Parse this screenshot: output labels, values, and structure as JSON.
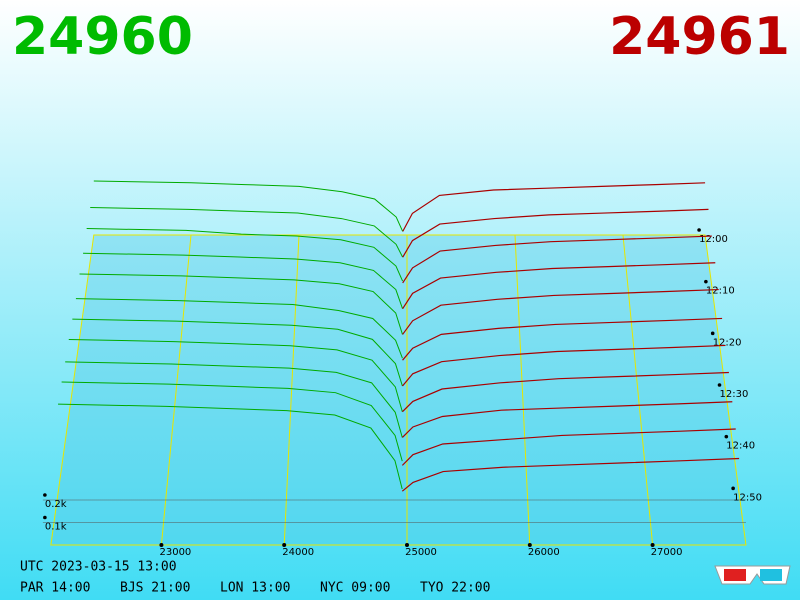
{
  "chart_data": {
    "type": "depth3d",
    "bid_price": "24960",
    "ask_price": "24961",
    "bid_color": "#00aa00",
    "ask_color": "#aa0000",
    "grid_color": "#e6e600",
    "bid_prices": [
      24960,
      24900,
      24700,
      24400,
      24000,
      23500,
      23000,
      22100
    ],
    "ask_prices": [
      24961,
      25050,
      25300,
      25800,
      26300,
      26800,
      27300,
      27760
    ],
    "series": [
      {
        "time": 0,
        "bids": [
          0.02,
          0.1,
          0.2,
          0.24,
          0.27,
          0.28,
          0.29,
          0.3
        ],
        "asks": [
          0.02,
          0.12,
          0.22,
          0.25,
          0.26,
          0.27,
          0.28,
          0.29
        ]
      },
      {
        "time": 5,
        "bids": [
          0.02,
          0.09,
          0.19,
          0.23,
          0.26,
          0.27,
          0.28,
          0.29
        ],
        "asks": [
          0.02,
          0.11,
          0.2,
          0.23,
          0.25,
          0.26,
          0.27,
          0.28
        ]
      },
      {
        "time": 10,
        "bids": [
          0.03,
          0.11,
          0.21,
          0.25,
          0.27,
          0.28,
          0.3,
          0.31
        ],
        "asks": [
          0.02,
          0.1,
          0.19,
          0.22,
          0.24,
          0.25,
          0.26,
          0.27
        ]
      },
      {
        "time": 15,
        "bids": [
          0.02,
          0.12,
          0.22,
          0.26,
          0.28,
          0.29,
          0.3,
          0.31
        ],
        "asks": [
          0.02,
          0.1,
          0.18,
          0.21,
          0.23,
          0.24,
          0.25,
          0.26
        ]
      },
      {
        "time": 20,
        "bids": [
          0.02,
          0.13,
          0.24,
          0.28,
          0.3,
          0.31,
          0.32,
          0.33
        ],
        "asks": [
          0.02,
          0.09,
          0.17,
          0.2,
          0.22,
          0.23,
          0.24,
          0.25
        ]
      },
      {
        "time": 25,
        "bids": [
          0.03,
          0.12,
          0.23,
          0.27,
          0.3,
          0.31,
          0.32,
          0.33
        ],
        "asks": [
          0.02,
          0.08,
          0.15,
          0.18,
          0.2,
          0.21,
          0.22,
          0.23
        ]
      },
      {
        "time": 30,
        "bids": [
          0.02,
          0.13,
          0.25,
          0.3,
          0.32,
          0.33,
          0.34,
          0.35
        ],
        "asks": [
          0.02,
          0.08,
          0.14,
          0.17,
          0.19,
          0.2,
          0.21,
          0.22
        ]
      },
      {
        "time": 35,
        "bids": [
          0.02,
          0.14,
          0.27,
          0.32,
          0.34,
          0.35,
          0.36,
          0.37
        ],
        "asks": [
          0.02,
          0.07,
          0.13,
          0.16,
          0.18,
          0.19,
          0.2,
          0.21
        ]
      },
      {
        "time": 40,
        "bids": [
          0.02,
          0.14,
          0.28,
          0.33,
          0.35,
          0.36,
          0.37,
          0.38
        ],
        "asks": [
          0.02,
          0.07,
          0.12,
          0.15,
          0.16,
          0.17,
          0.18,
          0.19
        ]
      },
      {
        "time": 45,
        "bids": [
          0.03,
          0.15,
          0.29,
          0.35,
          0.37,
          0.38,
          0.39,
          0.4
        ],
        "asks": [
          0.01,
          0.06,
          0.11,
          0.13,
          0.15,
          0.16,
          0.17,
          0.18
        ]
      },
      {
        "time": 50,
        "bids": [
          0.02,
          0.15,
          0.3,
          0.36,
          0.38,
          0.39,
          0.4,
          0.41
        ],
        "asks": [
          0.01,
          0.05,
          0.1,
          0.12,
          0.13,
          0.14,
          0.15,
          0.16
        ]
      }
    ],
    "xlim": [
      22100,
      27760
    ],
    "xticks": [
      23000,
      24000,
      25000,
      26000,
      27000
    ],
    "tlim": [
      0,
      60
    ],
    "tticks": [
      {
        "value": 0,
        "label": "12:00"
      },
      {
        "value": 10,
        "label": "12:10"
      },
      {
        "value": 20,
        "label": "12:20"
      },
      {
        "value": 30,
        "label": "12:30"
      },
      {
        "value": 40,
        "label": "12:40"
      },
      {
        "value": 50,
        "label": "12:50"
      }
    ],
    "dticks": [
      {
        "value": 0.1,
        "label": "0.1k"
      },
      {
        "value": 0.2,
        "label": "0.2k"
      }
    ],
    "footer": {
      "utc": "UTC 2023-03-15 13:00",
      "zones": [
        "PAR 14:00",
        "BJS 21:00",
        "LON 13:00",
        "NYC 09:00",
        "TYO 22:00"
      ]
    }
  }
}
